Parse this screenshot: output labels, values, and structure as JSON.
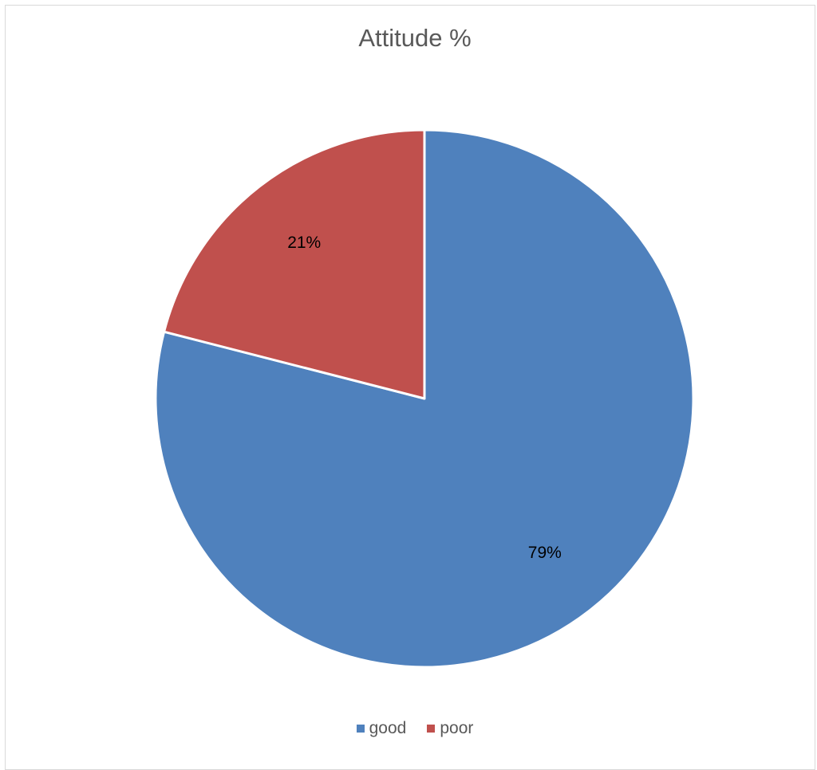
{
  "chart_data": {
    "type": "pie",
    "title": "Attitude %",
    "categories": [
      "good",
      "poor"
    ],
    "values": [
      79,
      21
    ],
    "data_labels": [
      "79%",
      "21%"
    ],
    "colors": [
      "#4f81bd",
      "#c0504d"
    ],
    "legend_position": "bottom"
  }
}
